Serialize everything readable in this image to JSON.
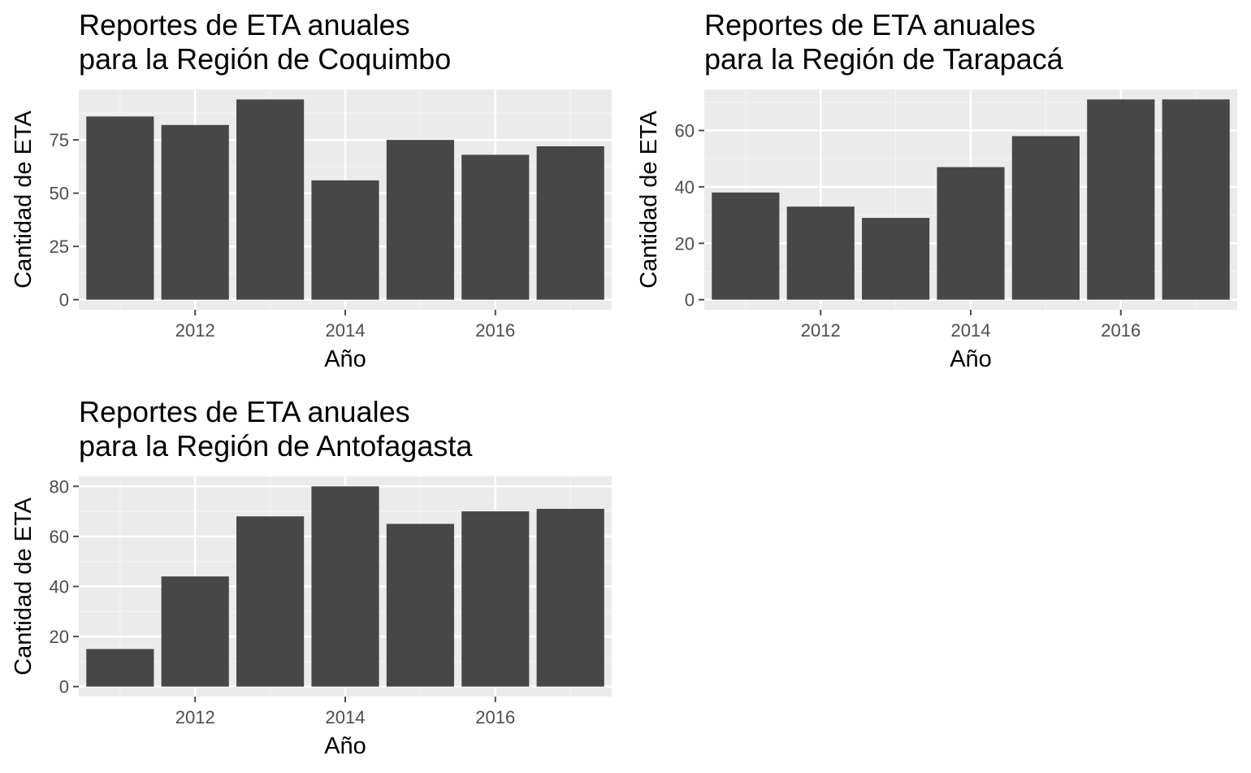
{
  "colors": {
    "panel_background": "#ebebeb",
    "grid_major": "#ffffff",
    "grid_minor": "#f5f5f5",
    "bar_fill": "#474747",
    "tick_color": "#4d4d4d",
    "text": "#000000"
  },
  "chart_data": [
    {
      "type": "bar",
      "title_lines": [
        "Reportes de ETA anuales",
        "para la Región de Coquimbo"
      ],
      "xlabel": "Año",
      "ylabel": "Cantidad de ETA",
      "x": [
        2011,
        2012,
        2013,
        2014,
        2015,
        2016,
        2017
      ],
      "values": [
        86,
        82,
        94,
        56,
        75,
        68,
        72
      ],
      "xlim": [
        2010.45,
        2017.55
      ],
      "ylim": [
        -4.7,
        98.7
      ],
      "xticks": [
        2012,
        2014,
        2016
      ],
      "yticks": [
        0,
        25,
        50,
        75
      ],
      "grid": true
    },
    {
      "type": "bar",
      "title_lines": [
        "Reportes de ETA anuales",
        "para la Región de Tarapacá"
      ],
      "xlabel": "Año",
      "ylabel": "Cantidad de ETA",
      "x": [
        2011,
        2012,
        2013,
        2014,
        2015,
        2016,
        2017
      ],
      "values": [
        38,
        33,
        29,
        47,
        58,
        71,
        71
      ],
      "xlim": [
        2010.45,
        2017.55
      ],
      "ylim": [
        -3.55,
        74.55
      ],
      "xticks": [
        2012,
        2014,
        2016
      ],
      "yticks": [
        0,
        20,
        40,
        60
      ],
      "grid": true
    },
    {
      "type": "bar",
      "title_lines": [
        "Reportes de ETA anuales",
        "para la Región de Antofagasta"
      ],
      "xlabel": "Año",
      "ylabel": "Cantidad de ETA",
      "x": [
        2011,
        2012,
        2013,
        2014,
        2015,
        2016,
        2017
      ],
      "values": [
        15,
        44,
        68,
        80,
        65,
        70,
        71
      ],
      "xlim": [
        2010.45,
        2017.55
      ],
      "ylim": [
        -4,
        84
      ],
      "xticks": [
        2012,
        2014,
        2016
      ],
      "yticks": [
        0,
        20,
        40,
        60,
        80
      ],
      "grid": true
    }
  ]
}
